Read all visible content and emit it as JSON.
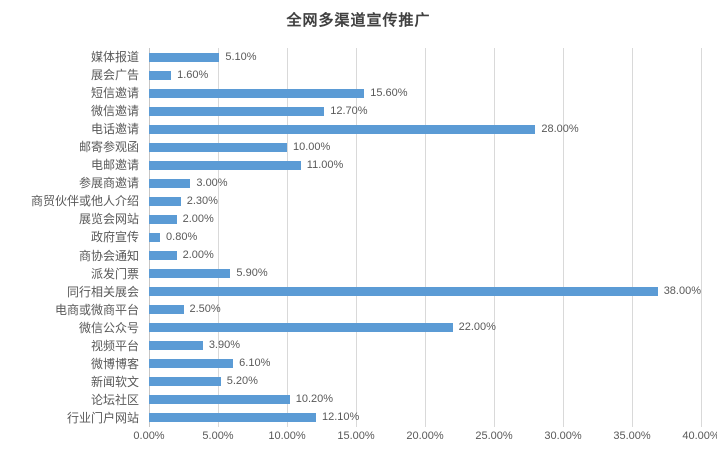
{
  "title": "全网多渠道宣传推广",
  "colors": {
    "bar": "#5B9BD5",
    "gridline": "#D9D9D9",
    "axis_line": "#C6C6C6",
    "label_text": "#595959",
    "title_text": "#404040",
    "background": "#FFFFFF"
  },
  "chart_data": {
    "type": "bar",
    "orientation": "horizontal",
    "title": "全网多渠道宣传推广",
    "categories": [
      "媒体报道",
      "展会广告",
      "短信邀请",
      "微信邀请",
      "电话邀请",
      "邮寄参观函",
      "电邮邀请",
      "参展商邀请",
      "商贸伙伴或他人介绍",
      "展览会网站",
      "政府宣传",
      "商协会通知",
      "派发门票",
      "同行相关展会",
      "电商或微商平台",
      "微信公众号",
      "视频平台",
      "微博博客",
      "新闻软文",
      "论坛社区",
      "行业门户网站"
    ],
    "values": [
      5.1,
      1.6,
      15.6,
      12.7,
      28.0,
      10.0,
      11.0,
      3.0,
      2.3,
      2.0,
      0.8,
      2.0,
      5.9,
      38.0,
      2.5,
      22.0,
      3.9,
      6.1,
      5.2,
      10.2,
      12.1
    ],
    "data_labels": [
      "5.10%",
      "1.60%",
      "15.60%",
      "12.70%",
      "28.00%",
      "10.00%",
      "11.00%",
      "3.00%",
      "2.30%",
      "2.00%",
      "0.80%",
      "2.00%",
      "5.90%",
      "38.00%",
      "2.50%",
      "22.00%",
      "3.90%",
      "6.10%",
      "5.20%",
      "10.20%",
      "12.10%"
    ],
    "xlabel": "",
    "ylabel": "",
    "xlim": [
      0,
      40
    ],
    "x_tick_step": 5,
    "x_ticks": [
      "0.00%",
      "5.00%",
      "10.00%",
      "15.00%",
      "20.00%",
      "25.00%",
      "30.00%",
      "35.00%",
      "40.00%"
    ],
    "grid": "vertical-major",
    "legend": "none",
    "data_label_position": "outside-end"
  }
}
